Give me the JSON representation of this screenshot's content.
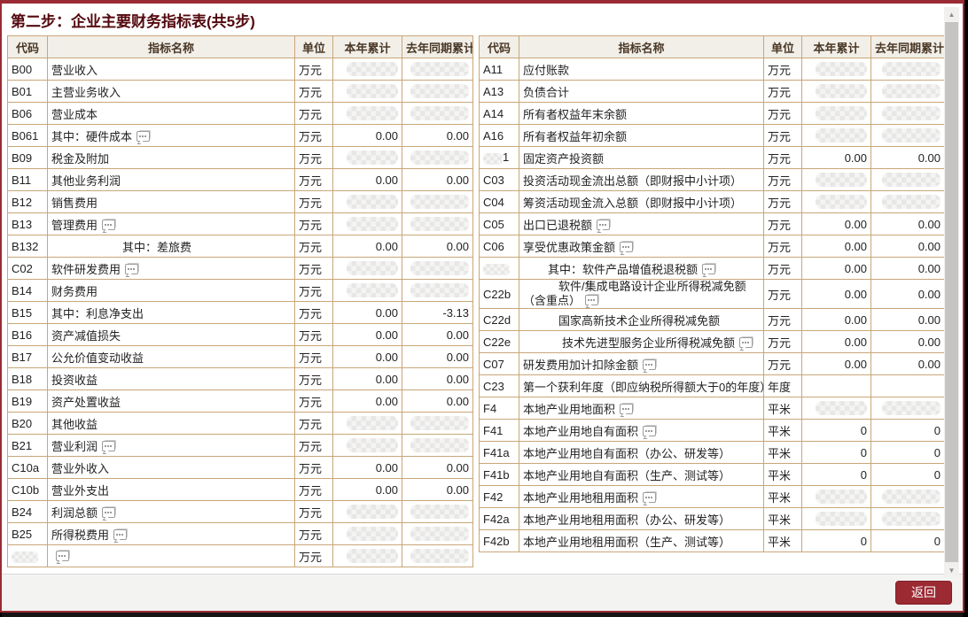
{
  "title": "第二步：企业主要财务指标表(共5步)",
  "columns": [
    "代码",
    "指标名称",
    "单位",
    "本年累计",
    "去年同期累计"
  ],
  "footer": {
    "back_label": "返回"
  },
  "colors": {
    "accent_maroon": "#9a2b34",
    "table_border_tan": "#c9a678",
    "button_red": "#9c2a33",
    "title_text": "#53080e"
  },
  "scrollbar": {
    "up_arrow": "▲",
    "down_arrow": "▼"
  },
  "redaction_note": "null value = pixelated/redacted blob in original screenshot; partial=true = row clipped at container bottom edge",
  "left_table": {
    "rows": [
      {
        "code": "B00",
        "name": "营业收入",
        "unit": "万元",
        "cur": null,
        "prev": null
      },
      {
        "code": "B01",
        "name": "主营业务收入",
        "unit": "万元",
        "cur": null,
        "prev": null
      },
      {
        "code": "B06",
        "name": "营业成本",
        "unit": "万元",
        "cur": null,
        "prev": null
      },
      {
        "code": "B061",
        "name": "其中：硬件成本",
        "icon": true,
        "unit": "万元",
        "cur": "0.00",
        "prev": "0.00"
      },
      {
        "code": "B09",
        "name": "税金及附加",
        "unit": "万元",
        "cur": null,
        "prev": null
      },
      {
        "code": "B11",
        "name": "其他业务利润",
        "unit": "万元",
        "cur": "0.00",
        "prev": "0.00"
      },
      {
        "code": "B12",
        "name": "销售费用",
        "unit": "万元",
        "cur": null,
        "prev": null
      },
      {
        "code": "B13",
        "name": "管理费用",
        "icon": true,
        "unit": "万元",
        "cur": null,
        "prev": null
      },
      {
        "code": "B132",
        "name": "其中：差旅费",
        "indent": 80,
        "unit": "万元",
        "cur": "0.00",
        "prev": "0.00"
      },
      {
        "code": "C02",
        "name": "软件研发费用",
        "icon": true,
        "unit": "万元",
        "cur": null,
        "prev": null
      },
      {
        "code": "B14",
        "name": "财务费用",
        "unit": "万元",
        "cur": null,
        "prev": null
      },
      {
        "code": "B15",
        "name": "其中：利息净支出",
        "unit": "万元",
        "cur": "0.00",
        "prev": "-3.13"
      },
      {
        "code": "B16",
        "name": "资产减值损失",
        "unit": "万元",
        "cur": "0.00",
        "prev": "0.00"
      },
      {
        "code": "B17",
        "name": "公允价值变动收益",
        "unit": "万元",
        "cur": "0.00",
        "prev": "0.00"
      },
      {
        "code": "B18",
        "name": "投资收益",
        "unit": "万元",
        "cur": "0.00",
        "prev": "0.00"
      },
      {
        "code": "B19",
        "name": "资产处置收益",
        "unit": "万元",
        "cur": "0.00",
        "prev": "0.00"
      },
      {
        "code": "B20",
        "name": "其他收益",
        "unit": "万元",
        "cur": null,
        "prev": null
      },
      {
        "code": "B21",
        "name": "营业利润",
        "icon": true,
        "unit": "万元",
        "cur": null,
        "prev": null
      },
      {
        "code": "C10a",
        "name": "营业外收入",
        "unit": "万元",
        "cur": "0.00",
        "prev": "0.00"
      },
      {
        "code": "C10b",
        "name": "营业外支出",
        "unit": "万元",
        "cur": "0.00",
        "prev": "0.00"
      },
      {
        "code": "B24",
        "name": "利润总额",
        "icon": true,
        "unit": "万元",
        "cur": null,
        "prev": null
      },
      {
        "code": "B25",
        "name": "所得税费用",
        "icon": true,
        "unit": "万元",
        "cur": null,
        "prev": null
      },
      {
        "code": "",
        "code_blur": true,
        "name": "",
        "icon": true,
        "unit": "万元",
        "cur": null,
        "prev": null,
        "partial": true
      }
    ]
  },
  "right_table": {
    "rows": [
      {
        "code": "A11",
        "name": "应付账款",
        "unit": "万元",
        "cur": null,
        "prev": null
      },
      {
        "code": "A13",
        "name": "负债合计",
        "unit": "万元",
        "cur": null,
        "prev": null
      },
      {
        "code": "A14",
        "name": "所有者权益年末余额",
        "unit": "万元",
        "cur": null,
        "prev": null
      },
      {
        "code": "A16",
        "name": "所有者权益年初余额",
        "unit": "万元",
        "cur": null,
        "prev": null
      },
      {
        "code": "1",
        "code_blur": true,
        "name": "固定资产投资额",
        "unit": "万元",
        "cur": "0.00",
        "prev": "0.00"
      },
      {
        "code": "C03",
        "name": "投资活动现金流出总额（即财报中小计项）",
        "unit": "万元",
        "cur": null,
        "prev": null
      },
      {
        "code": "C04",
        "name": "筹资活动现金流入总额（即财报中小计项）",
        "unit": "万元",
        "cur": null,
        "prev": null
      },
      {
        "code": "C05",
        "name": "出口已退税额",
        "icon": true,
        "unit": "万元",
        "cur": "0.00",
        "prev": "0.00"
      },
      {
        "code": "C06",
        "name": "享受优惠政策金额",
        "icon": true,
        "unit": "万元",
        "cur": "0.00",
        "prev": "0.00"
      },
      {
        "code": "",
        "code_blur": true,
        "name": "其中：软件产品增值税退税额",
        "icon": true,
        "indent": 28,
        "unit": "万元",
        "cur": "0.00",
        "prev": "0.00"
      },
      {
        "code": "C22b",
        "name": "软件/集成电路设计企业所得税减免额（含重点）",
        "icon": true,
        "indent": 40,
        "wrap": true,
        "unit": "万元",
        "cur": "0.00",
        "prev": "0.00"
      },
      {
        "code": "C22d",
        "name": "国家高新技术企业所得税减免额",
        "indent": 40,
        "unit": "万元",
        "cur": "0.00",
        "prev": "0.00"
      },
      {
        "code": "C22e",
        "name": "技术先进型服务企业所得税减免额",
        "icon": true,
        "indent": 44,
        "unit": "万元",
        "cur": "0.00",
        "prev": "0.00"
      },
      {
        "code": "C07",
        "name": "研发费用加计扣除金额",
        "icon": true,
        "unit": "万元",
        "cur": "0.00",
        "prev": "0.00"
      },
      {
        "code": "C23",
        "name": "第一个获利年度（即应纳税所得额大于0的年度）",
        "unit": "年度",
        "cur": "",
        "prev": ""
      },
      {
        "code": "F4",
        "name": "本地产业用地面积",
        "icon": true,
        "unit": "平米",
        "cur": null,
        "prev": null
      },
      {
        "code": "F41",
        "name": "本地产业用地自有面积",
        "icon": true,
        "unit": "平米",
        "cur": "0",
        "prev": "0"
      },
      {
        "code": "F41a",
        "name": "本地产业用地自有面积（办公、研发等）",
        "unit": "平米",
        "cur": "0",
        "prev": "0"
      },
      {
        "code": "F41b",
        "name": "本地产业用地自有面积（生产、测试等）",
        "unit": "平米",
        "cur": "0",
        "prev": "0"
      },
      {
        "code": "F42",
        "name": "本地产业用地租用面积",
        "icon": true,
        "unit": "平米",
        "cur": null,
        "prev": null
      },
      {
        "code": "F42a",
        "name": "本地产业用地租用面积（办公、研发等）",
        "unit": "平米",
        "cur": null,
        "prev": null
      },
      {
        "code": "F42b",
        "name": "本地产业用地租用面积（生产、测试等）",
        "unit": "平米",
        "cur": "0",
        "prev": "0"
      }
    ]
  }
}
